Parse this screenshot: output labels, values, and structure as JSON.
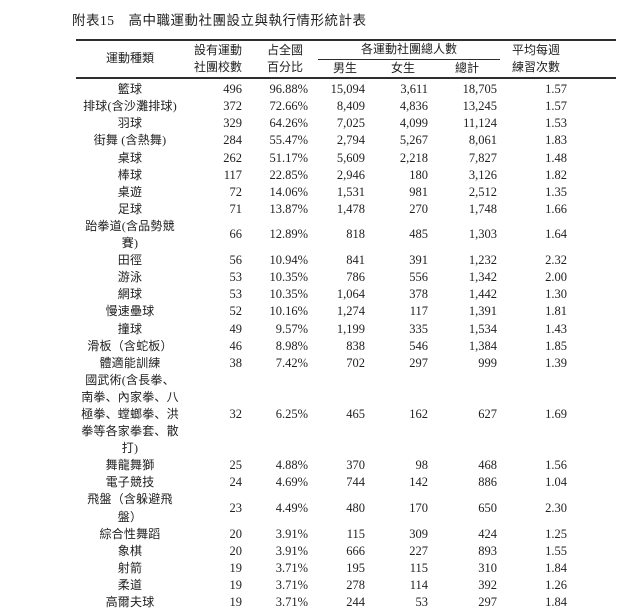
{
  "title": "附表15　高中職運動社團設立與執行情形統計表",
  "colors": {
    "text": "#1f1f1f",
    "rule": "#2e2e2e",
    "background": "#ffffff"
  },
  "table": {
    "headers": {
      "sport": "運動種類",
      "schools": "設有運動\n社團校數",
      "pct": "占全國\n百分比",
      "group_total": "各運動社團總人數",
      "male": "男生",
      "female": "女生",
      "total": "總計",
      "avg": "平均每週\n練習次數"
    },
    "rows": [
      {
        "sport": "籃球",
        "schools": "496",
        "pct": "96.88%",
        "male": "15,094",
        "female": "3,611",
        "total": "18,705",
        "avg": "1.57"
      },
      {
        "sport": "排球(含沙灘排球)",
        "schools": "372",
        "pct": "72.66%",
        "male": "8,409",
        "female": "4,836",
        "total": "13,245",
        "avg": "1.57"
      },
      {
        "sport": "羽球",
        "schools": "329",
        "pct": "64.26%",
        "male": "7,025",
        "female": "4,099",
        "total": "11,124",
        "avg": "1.53"
      },
      {
        "sport": "街舞 (含熱舞)",
        "schools": "284",
        "pct": "55.47%",
        "male": "2,794",
        "female": "5,267",
        "total": "8,061",
        "avg": "1.83"
      },
      {
        "sport": "桌球",
        "schools": "262",
        "pct": "51.17%",
        "male": "5,609",
        "female": "2,218",
        "total": "7,827",
        "avg": "1.48"
      },
      {
        "sport": "棒球",
        "schools": "117",
        "pct": "22.85%",
        "male": "2,946",
        "female": "180",
        "total": "3,126",
        "avg": "1.82"
      },
      {
        "sport": "桌遊",
        "schools": "72",
        "pct": "14.06%",
        "male": "1,531",
        "female": "981",
        "total": "2,512",
        "avg": "1.35"
      },
      {
        "sport": "足球",
        "schools": "71",
        "pct": "13.87%",
        "male": "1,478",
        "female": "270",
        "total": "1,748",
        "avg": "1.66"
      },
      {
        "sport": "跆拳道(含品勢競\n賽)",
        "schools": "66",
        "pct": "12.89%",
        "male": "818",
        "female": "485",
        "total": "1,303",
        "avg": "1.64"
      },
      {
        "sport": "田徑",
        "schools": "56",
        "pct": "10.94%",
        "male": "841",
        "female": "391",
        "total": "1,232",
        "avg": "2.32"
      },
      {
        "sport": "游泳",
        "schools": "53",
        "pct": "10.35%",
        "male": "786",
        "female": "556",
        "total": "1,342",
        "avg": "2.00"
      },
      {
        "sport": "網球",
        "schools": "53",
        "pct": "10.35%",
        "male": "1,064",
        "female": "378",
        "total": "1,442",
        "avg": "1.30"
      },
      {
        "sport": "慢速壘球",
        "schools": "52",
        "pct": "10.16%",
        "male": "1,274",
        "female": "117",
        "total": "1,391",
        "avg": "1.81"
      },
      {
        "sport": "撞球",
        "schools": "49",
        "pct": "9.57%",
        "male": "1,199",
        "female": "335",
        "total": "1,534",
        "avg": "1.43"
      },
      {
        "sport": "滑板（含蛇板）",
        "schools": "46",
        "pct": "8.98%",
        "male": "838",
        "female": "546",
        "total": "1,384",
        "avg": "1.85"
      },
      {
        "sport": "體適能訓練",
        "schools": "38",
        "pct": "7.42%",
        "male": "702",
        "female": "297",
        "total": "999",
        "avg": "1.39"
      },
      {
        "sport": "國武術(含長拳、\n南拳、內家拳、八\n極拳、螳螂拳、洪\n拳等各家拳套、散\n打)",
        "schools": "32",
        "pct": "6.25%",
        "male": "465",
        "female": "162",
        "total": "627",
        "avg": "1.69"
      },
      {
        "sport": "舞龍舞獅",
        "schools": "25",
        "pct": "4.88%",
        "male": "370",
        "female": "98",
        "total": "468",
        "avg": "1.56"
      },
      {
        "sport": "電子競技",
        "schools": "24",
        "pct": "4.69%",
        "male": "744",
        "female": "142",
        "total": "886",
        "avg": "1.04"
      },
      {
        "sport": "飛盤（含躲避飛\n盤）",
        "schools": "23",
        "pct": "4.49%",
        "male": "480",
        "female": "170",
        "total": "650",
        "avg": "2.30"
      },
      {
        "sport": "綜合性舞蹈",
        "schools": "20",
        "pct": "3.91%",
        "male": "115",
        "female": "309",
        "total": "424",
        "avg": "1.25"
      },
      {
        "sport": "象棋",
        "schools": "20",
        "pct": "3.91%",
        "male": "666",
        "female": "227",
        "total": "893",
        "avg": "1.55"
      },
      {
        "sport": "射箭",
        "schools": "19",
        "pct": "3.71%",
        "male": "195",
        "female": "115",
        "total": "310",
        "avg": "1.84"
      },
      {
        "sport": "柔道",
        "schools": "19",
        "pct": "3.71%",
        "male": "278",
        "female": "114",
        "total": "392",
        "avg": "1.26"
      },
      {
        "sport": "高爾夫球",
        "schools": "19",
        "pct": "3.71%",
        "male": "244",
        "female": "53",
        "total": "297",
        "avg": "1.84"
      }
    ]
  }
}
